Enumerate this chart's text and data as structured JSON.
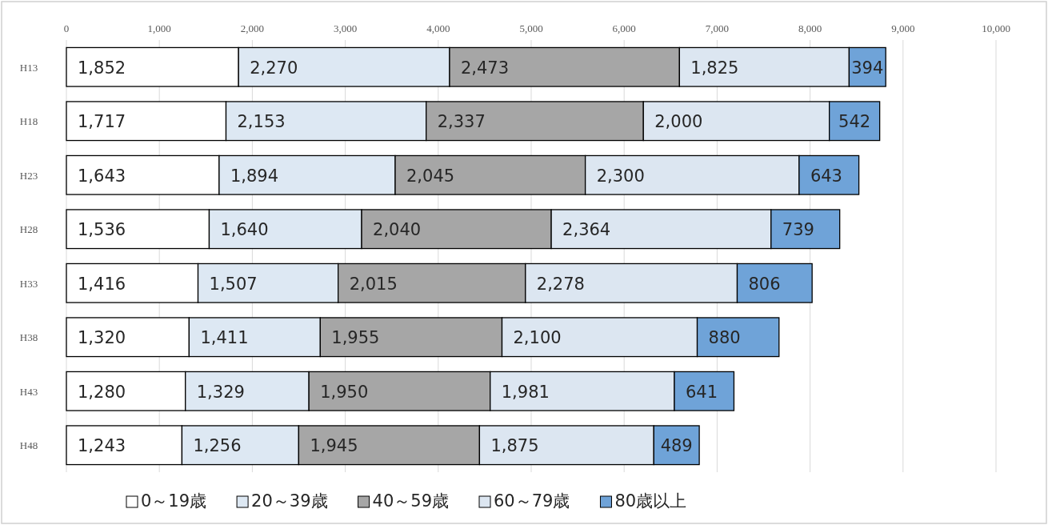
{
  "chart_data": {
    "type": "bar",
    "orientation": "horizontal",
    "stacked": true,
    "grid": "x",
    "legend": "bottom",
    "categories": [
      "H13",
      "H18",
      "H23",
      "H28",
      "H33",
      "H38",
      "H43",
      "H48"
    ],
    "xlim": [
      0,
      10000
    ],
    "xticks": [
      {
        "value": 0,
        "label": "0"
      },
      {
        "value": 1000,
        "label": "1,000"
      },
      {
        "value": 2000,
        "label": "2,000"
      },
      {
        "value": 3000,
        "label": "3,000"
      },
      {
        "value": 4000,
        "label": "4,000"
      },
      {
        "value": 5000,
        "label": "5,000"
      },
      {
        "value": 6000,
        "label": "6,000"
      },
      {
        "value": 7000,
        "label": "7,000"
      },
      {
        "value": 8000,
        "label": "8,000"
      },
      {
        "value": 9000,
        "label": "9,000"
      },
      {
        "value": 10000,
        "label": "10,000"
      }
    ],
    "series": [
      {
        "name": "0～19歳",
        "color": "#ffffff",
        "values": [
          1852,
          1717,
          1643,
          1536,
          1416,
          1320,
          1280,
          1243
        ],
        "value_labels": [
          "1,852",
          "1,717",
          "1,643",
          "1,536",
          "1,416",
          "1,320",
          "1,280",
          "1,243"
        ]
      },
      {
        "name": "20～39歳",
        "color": "#dde8f3",
        "values": [
          2270,
          2153,
          1894,
          1640,
          1507,
          1411,
          1329,
          1256
        ],
        "value_labels": [
          "2,270",
          "2,153",
          "1,894",
          "1,640",
          "1,507",
          "1,411",
          "1,329",
          "1,256"
        ]
      },
      {
        "name": "40～59歳",
        "color": "#a6a6a6",
        "values": [
          2473,
          2337,
          2045,
          2040,
          2015,
          1955,
          1950,
          1945
        ],
        "value_labels": [
          "2,473",
          "2,337",
          "2,045",
          "2,040",
          "2,015",
          "1,955",
          "1,950",
          "1,945"
        ]
      },
      {
        "name": "60～79歳",
        "color": "#dce6f1",
        "values": [
          1825,
          2000,
          2300,
          2364,
          2278,
          2100,
          1981,
          1875
        ],
        "value_labels": [
          "1,825",
          "2,000",
          "2,300",
          "2,364",
          "2,278",
          "2,100",
          "1,981",
          "1,875"
        ]
      },
      {
        "name": "80歳以上",
        "color": "#6fa3d8",
        "values": [
          394,
          542,
          643,
          739,
          806,
          880,
          641,
          489
        ],
        "value_labels": [
          "394",
          "542",
          "643",
          "739",
          "806",
          "880",
          "641",
          "489"
        ]
      }
    ]
  }
}
